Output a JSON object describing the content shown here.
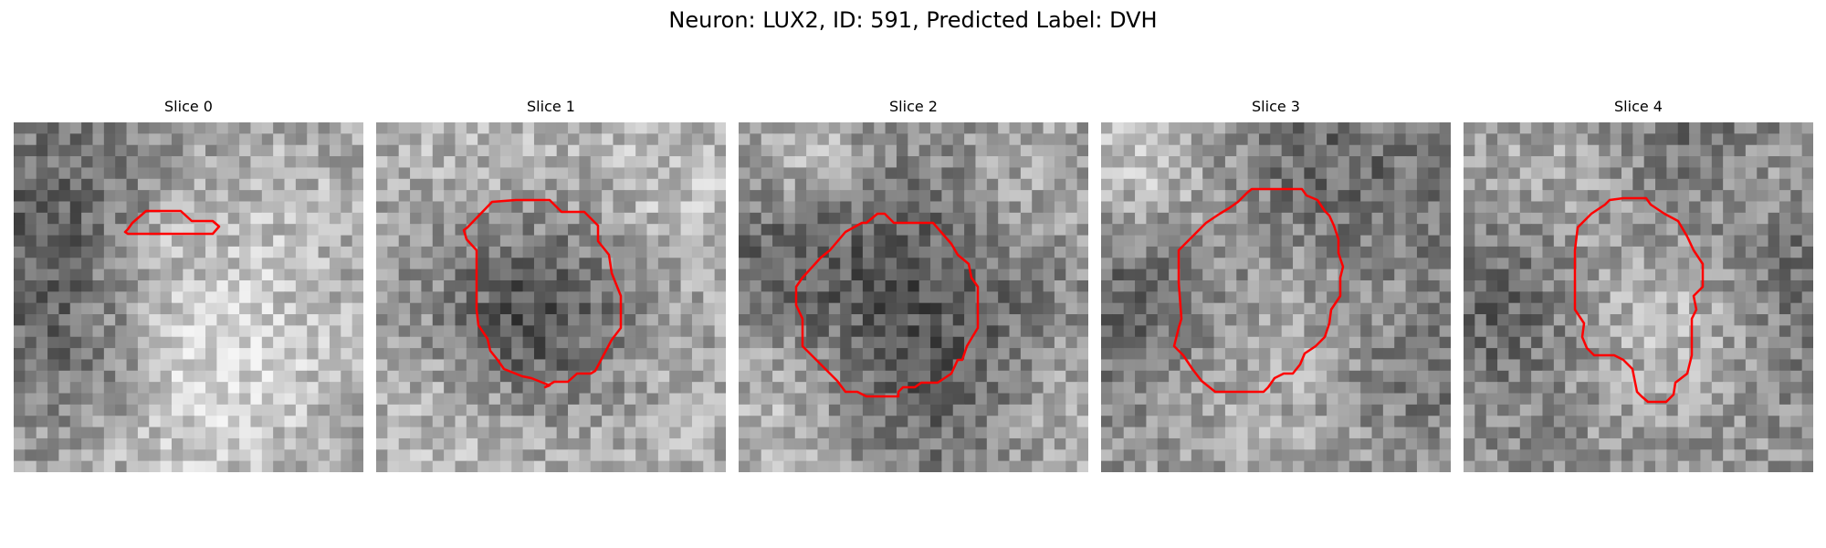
{
  "figure": {
    "title": "Neuron: LUX2, ID: 591, Predicted Label: DVH",
    "contour_color": "#ff0000",
    "colormap": "gray"
  },
  "slices": [
    {
      "title": "Slice 0"
    },
    {
      "title": "Slice 1"
    },
    {
      "title": "Slice 2"
    },
    {
      "title": "Slice 3"
    },
    {
      "title": "Slice 4"
    }
  ]
}
